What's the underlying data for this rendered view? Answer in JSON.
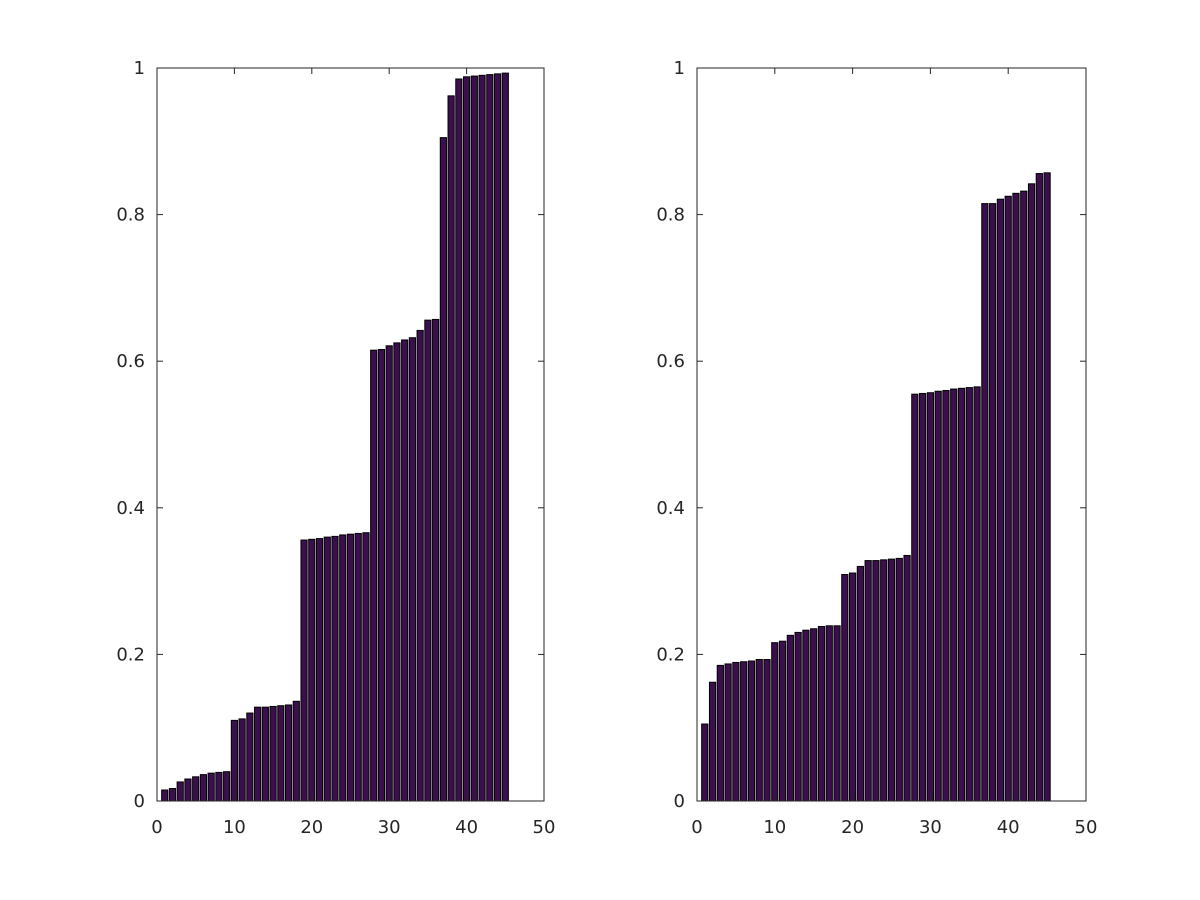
{
  "chart_data": [
    {
      "type": "bar",
      "title": "",
      "xlabel": "",
      "ylabel": "",
      "xlim": [
        0,
        50
      ],
      "ylim": [
        0,
        1
      ],
      "x_ticks": [
        0,
        10,
        20,
        30,
        40,
        50
      ],
      "y_ticks": [
        0,
        0.2,
        0.4,
        0.6,
        0.8,
        1
      ],
      "x_tick_labels": [
        "0",
        "10",
        "20",
        "30",
        "40",
        "50"
      ],
      "y_tick_labels": [
        "0",
        "0.2",
        "0.4",
        "0.6",
        "0.8",
        "1"
      ],
      "grid": false,
      "bar_color": "#3b0f4d",
      "x": [
        1,
        2,
        3,
        4,
        5,
        6,
        7,
        8,
        9,
        10,
        11,
        12,
        13,
        14,
        15,
        16,
        17,
        18,
        19,
        20,
        21,
        22,
        23,
        24,
        25,
        26,
        27,
        28,
        29,
        30,
        31,
        32,
        33,
        34,
        35,
        36,
        37,
        38,
        39,
        40,
        41,
        42,
        43,
        44,
        45
      ],
      "values": [
        0.015,
        0.017,
        0.026,
        0.03,
        0.033,
        0.036,
        0.038,
        0.039,
        0.04,
        0.11,
        0.112,
        0.12,
        0.128,
        0.128,
        0.129,
        0.13,
        0.131,
        0.136,
        0.356,
        0.357,
        0.358,
        0.36,
        0.361,
        0.363,
        0.364,
        0.365,
        0.366,
        0.615,
        0.616,
        0.621,
        0.625,
        0.629,
        0.632,
        0.642,
        0.656,
        0.657,
        0.905,
        0.962,
        0.985,
        0.988,
        0.989,
        0.99,
        0.991,
        0.992,
        0.993
      ]
    },
    {
      "type": "bar",
      "title": "",
      "xlabel": "",
      "ylabel": "",
      "xlim": [
        0,
        50
      ],
      "ylim": [
        0,
        1
      ],
      "x_ticks": [
        0,
        10,
        20,
        30,
        40,
        50
      ],
      "y_ticks": [
        0,
        0.2,
        0.4,
        0.6,
        0.8,
        1
      ],
      "x_tick_labels": [
        "0",
        "10",
        "20",
        "30",
        "40",
        "50"
      ],
      "y_tick_labels": [
        "0",
        "0.2",
        "0.4",
        "0.6",
        "0.8",
        "1"
      ],
      "grid": false,
      "bar_color": "#3b0f4d",
      "x": [
        1,
        2,
        3,
        4,
        5,
        6,
        7,
        8,
        9,
        10,
        11,
        12,
        13,
        14,
        15,
        16,
        17,
        18,
        19,
        20,
        21,
        22,
        23,
        24,
        25,
        26,
        27,
        28,
        29,
        30,
        31,
        32,
        33,
        34,
        35,
        36,
        37,
        38,
        39,
        40,
        41,
        42,
        43,
        44,
        45
      ],
      "values": [
        0.105,
        0.162,
        0.185,
        0.187,
        0.189,
        0.19,
        0.191,
        0.193,
        0.193,
        0.216,
        0.218,
        0.226,
        0.23,
        0.233,
        0.235,
        0.238,
        0.239,
        0.239,
        0.309,
        0.311,
        0.32,
        0.328,
        0.328,
        0.329,
        0.33,
        0.331,
        0.335,
        0.555,
        0.556,
        0.557,
        0.559,
        0.56,
        0.562,
        0.563,
        0.564,
        0.565,
        0.815,
        0.815,
        0.821,
        0.825,
        0.829,
        0.832,
        0.842,
        0.856,
        0.857
      ]
    }
  ]
}
